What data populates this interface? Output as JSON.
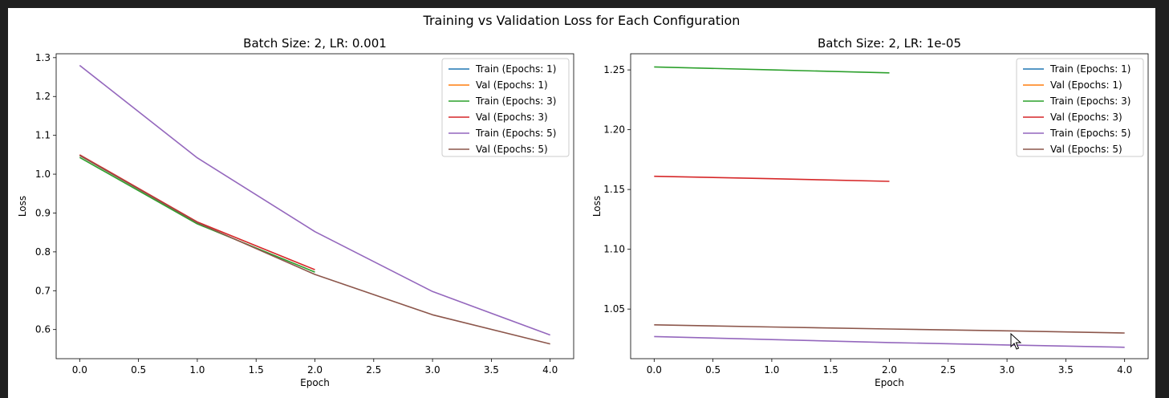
{
  "figure": {
    "suptitle": "Training vs Validation Loss for Each Configuration",
    "background": "#ffffff",
    "window_background": "#1f1f1f"
  },
  "chart_data": [
    {
      "type": "line",
      "title": "Batch Size: 2, LR: 0.001",
      "xlabel": "Epoch",
      "ylabel": "Loss",
      "xlim": [
        -0.2,
        4.2
      ],
      "ylim": [
        0.525,
        1.31
      ],
      "xticks": [
        0.0,
        0.5,
        1.0,
        1.5,
        2.0,
        2.5,
        3.0,
        3.5,
        4.0
      ],
      "xtick_labels": [
        "0.0",
        "0.5",
        "1.0",
        "1.5",
        "2.0",
        "2.5",
        "3.0",
        "3.5",
        "4.0"
      ],
      "yticks": [
        0.6,
        0.7,
        0.8,
        0.9,
        1.0,
        1.1,
        1.2,
        1.3
      ],
      "ytick_labels": [
        "0.6",
        "0.7",
        "0.8",
        "0.9",
        "1.0",
        "1.1",
        "1.2",
        "1.3"
      ],
      "grid": false,
      "legend_position": "top-right",
      "series": [
        {
          "name": "Train (Epochs: 1)",
          "color": "#1f77b4",
          "x": [
            0
          ],
          "y": [
            1.045
          ]
        },
        {
          "name": "Val (Epochs: 1)",
          "color": "#ff7f0e",
          "x": [
            0
          ],
          "y": [
            1.048
          ]
        },
        {
          "name": "Train (Epochs: 3)",
          "color": "#2ca02c",
          "x": [
            0,
            1,
            2
          ],
          "y": [
            1.043,
            0.872,
            0.748
          ]
        },
        {
          "name": "Val (Epochs: 3)",
          "color": "#d62728",
          "x": [
            0,
            1,
            2
          ],
          "y": [
            1.05,
            0.877,
            0.754
          ]
        },
        {
          "name": "Train (Epochs: 5)",
          "color": "#9467bd",
          "x": [
            0,
            1,
            2,
            3,
            4
          ],
          "y": [
            1.28,
            1.042,
            0.852,
            0.698,
            0.586
          ]
        },
        {
          "name": "Val (Epochs: 5)",
          "color": "#8c564b",
          "x": [
            0,
            1,
            2,
            3,
            4
          ],
          "y": [
            1.048,
            0.875,
            0.742,
            0.638,
            0.563
          ]
        }
      ]
    },
    {
      "type": "line",
      "title": "Batch Size: 2, LR: 1e-05",
      "xlabel": "Epoch",
      "ylabel": "Loss",
      "xlim": [
        -0.2,
        4.2
      ],
      "ylim": [
        1.0085,
        1.2635
      ],
      "xticks": [
        0.0,
        0.5,
        1.0,
        1.5,
        2.0,
        2.5,
        3.0,
        3.5,
        4.0
      ],
      "xtick_labels": [
        "0.0",
        "0.5",
        "1.0",
        "1.5",
        "2.0",
        "2.5",
        "3.0",
        "3.5",
        "4.0"
      ],
      "yticks": [
        1.05,
        1.1,
        1.15,
        1.2,
        1.25
      ],
      "ytick_labels": [
        "1.05",
        "1.10",
        "1.15",
        "1.20",
        "1.25"
      ],
      "grid": false,
      "legend_position": "top-right",
      "series": [
        {
          "name": "Train (Epochs: 1)",
          "color": "#1f77b4",
          "x": [
            0
          ],
          "y": [
            1.03
          ]
        },
        {
          "name": "Val (Epochs: 1)",
          "color": "#ff7f0e",
          "x": [
            0
          ],
          "y": [
            1.03
          ]
        },
        {
          "name": "Train (Epochs: 3)",
          "color": "#2ca02c",
          "x": [
            0,
            1,
            2
          ],
          "y": [
            1.2525,
            1.25,
            1.2475
          ]
        },
        {
          "name": "Val (Epochs: 3)",
          "color": "#d62728",
          "x": [
            0,
            1,
            2
          ],
          "y": [
            1.161,
            1.159,
            1.1568
          ]
        },
        {
          "name": "Train (Epochs: 5)",
          "color": "#9467bd",
          "x": [
            0,
            1,
            2,
            3,
            4
          ],
          "y": [
            1.027,
            1.0245,
            1.022,
            1.02,
            1.018
          ]
        },
        {
          "name": "Val (Epochs: 5)",
          "color": "#8c564b",
          "x": [
            0,
            1,
            2,
            3,
            4
          ],
          "y": [
            1.0368,
            1.035,
            1.0333,
            1.0318,
            1.03
          ]
        }
      ]
    }
  ]
}
